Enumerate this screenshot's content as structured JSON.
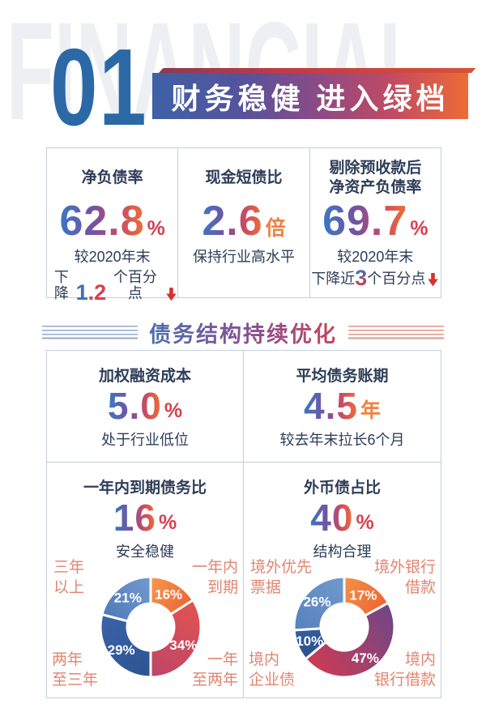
{
  "header": {
    "ghost": "FINANCIAL",
    "number": "01",
    "banner": "财务稳健 进入绿档"
  },
  "section": {
    "title": "债务结构持续优化"
  },
  "top_stats": [
    {
      "title_line1": "净负债率",
      "title_line2": "",
      "value": "62.8",
      "unit": "%",
      "sub1": "较2020年末",
      "sub2_pre": "下降",
      "hl1": "1",
      "hl2": ".2",
      "sub2_post": "个百分点",
      "arrow": "down"
    },
    {
      "title_line1": "现金短债比",
      "title_line2": "",
      "value": "2.6",
      "unit": "倍",
      "sub1": "保持行业高水平"
    },
    {
      "title_line1": "剔除预收款后",
      "title_line2": "净资产负债率",
      "value": "69.7",
      "unit": "%",
      "sub1": "较2020年末",
      "sub2_pre": "下降近",
      "hl1": "3",
      "sub2_post": "个百分点",
      "arrow": "down"
    }
  ],
  "mid_stats": [
    {
      "title": "加权融资成本",
      "value": "5.0",
      "unit": "%",
      "sub": "处于行业低位"
    },
    {
      "title": "平均债务账期",
      "value": "4.5",
      "unit": "年",
      "sub": "较去年末拉长6个月"
    },
    {
      "title": "一年内到期债务比",
      "value": "16",
      "unit": "%",
      "sub": "安全稳健"
    },
    {
      "title": "外币债占比",
      "value": "40",
      "unit": "%",
      "sub": "结构合理"
    }
  ],
  "chart_data": [
    {
      "type": "pie",
      "subtype": "donut",
      "start_angle_deg": 0,
      "direction": "clockwise",
      "unit": "%",
      "segments": [
        {
          "label": "一年内到期",
          "label_lines": [
            "一年内",
            "到期"
          ],
          "value": 16,
          "display": "16%",
          "color_start": "#f79a4d",
          "color_end": "#ec6532",
          "label_anchor": "tr"
        },
        {
          "label": "一年至两年",
          "label_lines": [
            "一年",
            "至两年"
          ],
          "value": 34,
          "display": "34%",
          "color_start": "#e25350",
          "color_end": "#bc4569",
          "label_anchor": "br"
        },
        {
          "label": "两年至三年",
          "label_lines": [
            "两年",
            "至三年"
          ],
          "value": 29,
          "display": "29%",
          "color_start": "#2c5390",
          "color_end": "#3a63a8",
          "label_anchor": "bl"
        },
        {
          "label": "三年以上",
          "label_lines": [
            "三年",
            "以上"
          ],
          "value": 21,
          "display": "21%",
          "color_start": "#4e7ab8",
          "color_end": "#739ace",
          "label_anchor": "tl"
        }
      ]
    },
    {
      "type": "pie",
      "subtype": "donut",
      "start_angle_deg": 0,
      "direction": "clockwise",
      "unit": "%",
      "segments": [
        {
          "label": "境外银行借款",
          "label_lines": [
            "境外银行",
            "借款"
          ],
          "value": 17,
          "display": "17%",
          "color_start": "#f5924a",
          "color_end": "#ec6532",
          "label_anchor": "tr"
        },
        {
          "label": "境内银行借款",
          "label_lines": [
            "境内",
            "银行借款"
          ],
          "value": 47,
          "display": "47%",
          "color_start": "#6f4787",
          "color_end": "#cf3a52",
          "label_anchor": "br"
        },
        {
          "label": "境内企业债",
          "label_lines": [
            "境内",
            "企业债"
          ],
          "value": 10,
          "display": "10%",
          "color_start": "#2a5191",
          "color_end": "#34609f",
          "label_anchor": "bl"
        },
        {
          "label": "境外优先票据",
          "label_lines": [
            "境外优先",
            "票据"
          ],
          "value": 26,
          "display": "26%",
          "color_start": "#5581bd",
          "color_end": "#7299cd",
          "label_anchor": "tl"
        }
      ]
    }
  ],
  "palette": {
    "number_blue": "#2a69a6",
    "value_gradient": [
      "#3a78c2",
      "#7452a3",
      "#c94b62",
      "#ef7036"
    ],
    "banner_gradient": [
      "#3e61a6",
      "#8a4b85",
      "#ee6b35"
    ],
    "percent_red": "#d8404e",
    "unit_orange": "#f0813f",
    "title_navy": "#2e3d58",
    "chart_label_salmon": "#e28570",
    "ghost_gray": "#edeff3",
    "border_gray": "#c3cfdc",
    "arrow_red": "#d83030"
  }
}
